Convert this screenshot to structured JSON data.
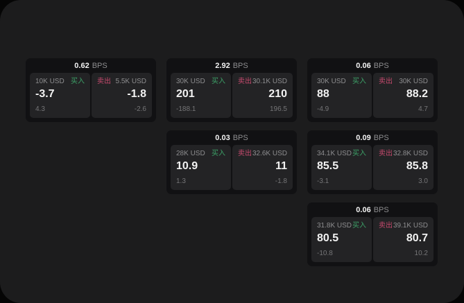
{
  "theme": {
    "outer_bg": "#050505",
    "container_bg": "#1c1c1d",
    "card_bg": "#111113",
    "panel_bg": "#232325",
    "text_primary": "#f2f2f2",
    "text_secondary": "#8d8d8f",
    "text_tertiary": "#757577",
    "buy_color": "#3da268",
    "sell_color": "#c74a6e"
  },
  "labels": {
    "bps_unit": "BPS",
    "buy": "买入",
    "sell": "卖出"
  },
  "cards": [
    {
      "bps": "0.62",
      "buy": {
        "amount": "10K USD",
        "price": "-3.7",
        "change": "4.3"
      },
      "sell": {
        "amount": "5.5K USD",
        "price": "-1.8",
        "change": "-2.6"
      }
    },
    {
      "bps": "2.92",
      "buy": {
        "amount": "30K USD",
        "price": "201",
        "change": "-188.1"
      },
      "sell": {
        "amount": "30.1K USD",
        "price": "210",
        "change": "196.5"
      }
    },
    {
      "bps": "0.06",
      "buy": {
        "amount": "30K USD",
        "price": "88",
        "change": "-4.9"
      },
      "sell": {
        "amount": "30K USD",
        "price": "88.2",
        "change": "4.7"
      }
    },
    {
      "bps": "0.03",
      "buy": {
        "amount": "28K USD",
        "price": "10.9",
        "change": "1.3"
      },
      "sell": {
        "amount": "32.6K USD",
        "price": "11",
        "change": "-1.8"
      }
    },
    {
      "bps": "0.09",
      "buy": {
        "amount": "34.1K USD",
        "price": "85.5",
        "change": "-3.1"
      },
      "sell": {
        "amount": "32.8K USD",
        "price": "85.8",
        "change": "3.0"
      }
    },
    {
      "bps": "0.06",
      "buy": {
        "amount": "31.8K USD",
        "price": "80.5",
        "change": "-10.8"
      },
      "sell": {
        "amount": "39.1K USD",
        "price": "80.7",
        "change": "10.2"
      }
    }
  ]
}
